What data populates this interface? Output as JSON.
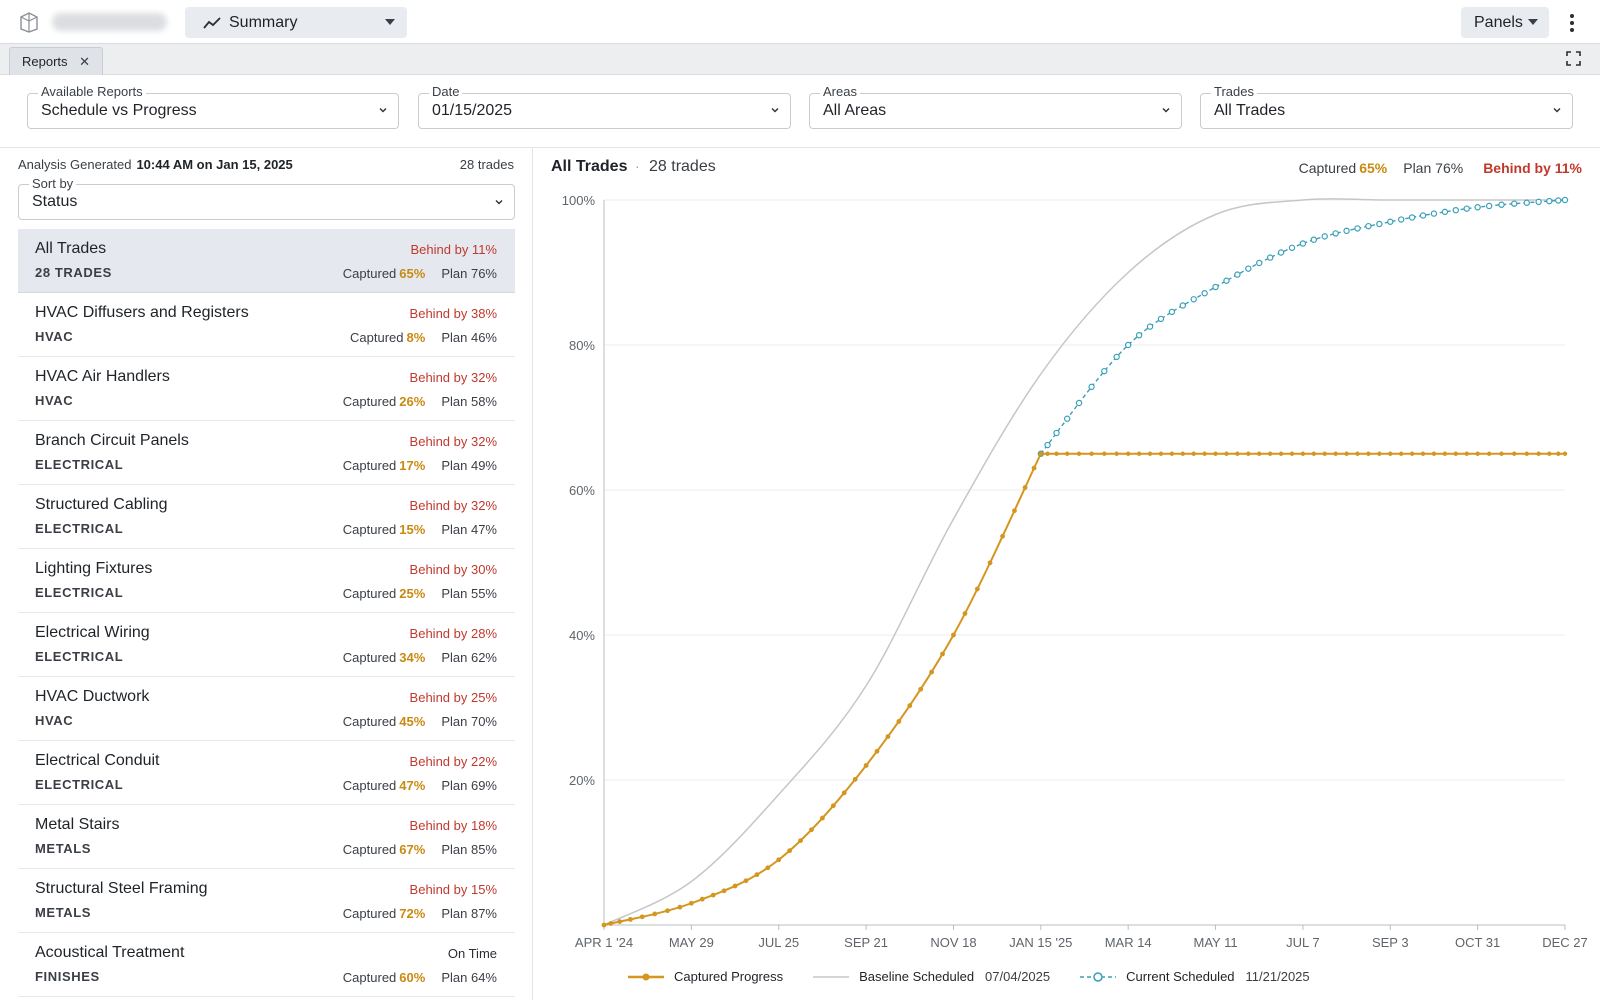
{
  "topbar": {
    "view_label": "Summary",
    "panels_label": "Panels"
  },
  "tabs": [
    {
      "label": "Reports"
    }
  ],
  "filters": {
    "report": {
      "label": "Available Reports",
      "value": "Schedule vs Progress"
    },
    "date": {
      "label": "Date",
      "value": "01/15/2025"
    },
    "areas": {
      "label": "Areas",
      "value": "All Areas"
    },
    "trades": {
      "label": "Trades",
      "value": "All Trades"
    }
  },
  "left": {
    "analysis_label": "Analysis Generated",
    "analysis_time": "10:44 AM on Jan 15, 2025",
    "trade_count": "28 trades",
    "sort": {
      "label": "Sort by",
      "value": "Status"
    },
    "captured_label": "Captured",
    "plan_label": "Plan",
    "rows": [
      {
        "name": "All Trades",
        "category": "28 TRADES",
        "status": "Behind by 11%",
        "captured": "65%",
        "plan": "76%"
      },
      {
        "name": "HVAC Diffusers and Registers",
        "category": "HVAC",
        "status": "Behind by 38%",
        "captured": "8%",
        "plan": "46%"
      },
      {
        "name": "HVAC Air Handlers",
        "category": "HVAC",
        "status": "Behind by 32%",
        "captured": "26%",
        "plan": "58%"
      },
      {
        "name": "Branch Circuit Panels",
        "category": "ELECTRICAL",
        "status": "Behind by 32%",
        "captured": "17%",
        "plan": "49%"
      },
      {
        "name": "Structured Cabling",
        "category": "ELECTRICAL",
        "status": "Behind by 32%",
        "captured": "15%",
        "plan": "47%"
      },
      {
        "name": "Lighting Fixtures",
        "category": "ELECTRICAL",
        "status": "Behind by 30%",
        "captured": "25%",
        "plan": "55%"
      },
      {
        "name": "Electrical Wiring",
        "category": "ELECTRICAL",
        "status": "Behind by 28%",
        "captured": "34%",
        "plan": "62%"
      },
      {
        "name": "HVAC Ductwork",
        "category": "HVAC",
        "status": "Behind by 25%",
        "captured": "45%",
        "plan": "70%"
      },
      {
        "name": "Electrical Conduit",
        "category": "ELECTRICAL",
        "status": "Behind by 22%",
        "captured": "47%",
        "plan": "69%"
      },
      {
        "name": "Metal Stairs",
        "category": "METALS",
        "status": "Behind by 18%",
        "captured": "67%",
        "plan": "85%"
      },
      {
        "name": "Structural Steel Framing",
        "category": "METALS",
        "status": "Behind by 15%",
        "captured": "72%",
        "plan": "87%"
      },
      {
        "name": "Acoustical Treatment",
        "category": "FINISHES",
        "status": "On Time",
        "captured": "60%",
        "plan": "64%"
      }
    ]
  },
  "chart": {
    "title": "All Trades",
    "separator": "·",
    "subtitle": "28 trades",
    "captured_label": "Captured",
    "captured": "65%",
    "plan_label": "Plan",
    "plan": "76%",
    "status": "Behind by 11%"
  },
  "chart_data": {
    "type": "line",
    "ylim": [
      0,
      100
    ],
    "y_ticks": [
      "20%",
      "40%",
      "60%",
      "80%",
      "100%"
    ],
    "x_ticks": [
      "APR 1 '24",
      "MAY 29",
      "JUL 25",
      "SEP 21",
      "NOV 18",
      "JAN 15 '25",
      "MAR 14",
      "MAY 11",
      "JUL 7",
      "SEP 3",
      "OCT 31",
      "DEC 27"
    ],
    "colors": {
      "captured": "#d4961e",
      "baseline": "#c4c6c9",
      "current": "#3a9fb8"
    },
    "series": [
      {
        "name": "Captured Progress",
        "x": [
          "APR 1 '24",
          "MAY 29",
          "JUL 25",
          "SEP 21",
          "NOV 18",
          "JAN 15 '25",
          "MAR 14",
          "MAY 11",
          "JUL 7",
          "SEP 3",
          "OCT 31",
          "DEC 27"
        ],
        "values": [
          0,
          3,
          9,
          22,
          40,
          65,
          65,
          65,
          65,
          65,
          65,
          65
        ]
      },
      {
        "name": "Baseline Scheduled",
        "date": "07/04/2025",
        "x": [
          "APR 1 '24",
          "MAY 29",
          "JUL 25",
          "SEP 21",
          "NOV 18",
          "JAN 15 '25",
          "MAR 14",
          "MAY 11",
          "JUL 7",
          "SEP 3",
          "OCT 31",
          "DEC 27"
        ],
        "values": [
          0,
          6,
          18,
          33,
          56,
          76,
          90,
          98,
          100,
          100,
          100,
          100
        ]
      },
      {
        "name": "Current Scheduled",
        "date": "11/21/2025",
        "x": [
          "JAN 15 '25",
          "MAR 14",
          "MAY 11",
          "JUL 7",
          "SEP 3",
          "OCT 31",
          "DEC 27"
        ],
        "values": [
          65,
          80,
          88,
          94,
          97,
          99,
          100
        ]
      }
    ]
  }
}
